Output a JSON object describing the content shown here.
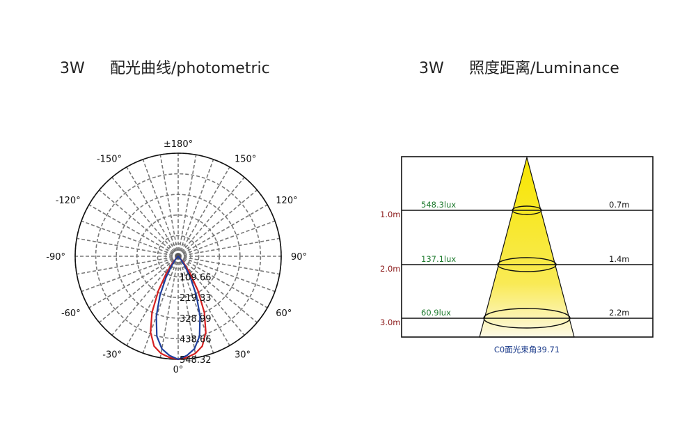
{
  "titles": {
    "left": {
      "watt": "3W",
      "text": "配光曲线/photometric"
    },
    "right": {
      "watt": "3W",
      "text": "照度距离/Luminance"
    }
  },
  "chart_data": [
    {
      "type": "polar",
      "angle_labels": [
        {
          "angle": 180,
          "label": "±180°"
        },
        {
          "angle": 150,
          "label": "150°"
        },
        {
          "angle": -150,
          "label": "-150°"
        },
        {
          "angle": 120,
          "label": "120°"
        },
        {
          "angle": -120,
          "label": "-120°"
        },
        {
          "angle": 90,
          "label": "90°"
        },
        {
          "angle": -90,
          "label": "-90°"
        },
        {
          "angle": 60,
          "label": "60°"
        },
        {
          "angle": -60,
          "label": "-60°"
        },
        {
          "angle": 30,
          "label": "30°"
        },
        {
          "angle": -30,
          "label": "-30°"
        },
        {
          "angle": 0,
          "label": "0°"
        }
      ],
      "radial_labels": [
        "109.66",
        "219.33",
        "328.99",
        "438.66",
        "548.32"
      ],
      "radial_max": 548.32,
      "series": [
        {
          "color": "#d62020",
          "points": [
            [
              0,
              548.32
            ],
            [
              5,
              540
            ],
            [
              10,
              525
            ],
            [
              15,
              495
            ],
            [
              20,
              430
            ],
            [
              25,
              330
            ],
            [
              30,
              210
            ],
            [
              35,
              110
            ],
            [
              40,
              45
            ],
            [
              45,
              12
            ],
            [
              50,
              0
            ]
          ]
        },
        {
          "color": "#1f3f9c",
          "points": [
            [
              0,
              548.32
            ],
            [
              5,
              530
            ],
            [
              10,
              500
            ],
            [
              15,
              440
            ],
            [
              20,
              340
            ],
            [
              25,
              230
            ],
            [
              30,
              130
            ],
            [
              35,
              60
            ],
            [
              40,
              20
            ],
            [
              45,
              4
            ],
            [
              50,
              0
            ]
          ]
        }
      ]
    },
    {
      "type": "illuminance-cone",
      "rows": [
        {
          "height": "1.0m",
          "lux": "548.3lux",
          "diameter": "0.7m"
        },
        {
          "height": "2.0m",
          "lux": "137.1lux",
          "diameter": "1.4m"
        },
        {
          "height": "3.0m",
          "lux": "60.9lux",
          "diameter": "2.2m"
        }
      ],
      "beam_label": "C0面光束角39.71"
    }
  ]
}
